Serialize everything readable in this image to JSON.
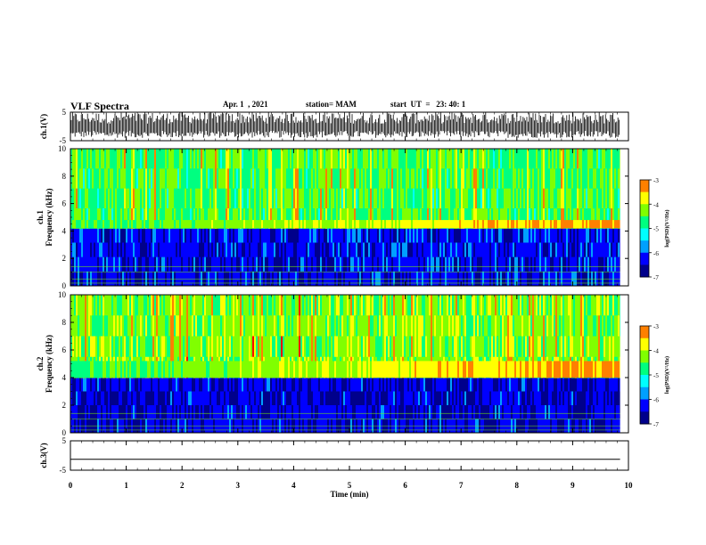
{
  "header": {
    "title": "VLF Spectra",
    "date": "Apr. 1  , 2021",
    "station": "station= MAM",
    "start": "start  UT  =   23: 40: 1"
  },
  "chart_data": [
    {
      "type": "line",
      "panel": "channel-1-waveform",
      "ylabel": "ch.1(V)",
      "ylim": [
        -5,
        5
      ],
      "yticks": [
        "5",
        "-5"
      ],
      "description_level": "dense impulsive spikes spanning full range"
    },
    {
      "type": "heatmap",
      "panel": "channel-1-spectrogram",
      "ylabel": "ch.1\nFrequency (kHz)",
      "ylabel_lines": [
        "ch.1",
        "Frequency (kHz)"
      ],
      "ylim": [
        0,
        10
      ],
      "yticks": [
        "0",
        "2",
        "4",
        "6",
        "8",
        "10"
      ],
      "xlim": [
        0,
        10
      ],
      "colorbar": {
        "label": "log(PSD)(V²/Hz)",
        "range": [
          -7,
          -3
        ],
        "ticks": [
          "-3",
          "-4",
          "-5",
          "-6",
          "-7"
        ]
      },
      "bands": [
        {
          "from_khz": 0,
          "to_khz": 4.2,
          "level": -6.3
        },
        {
          "from_khz": 4.2,
          "to_khz": 10,
          "level": -4.6
        }
      ],
      "enhancement_khz": [
        4.2,
        4.8
      ]
    },
    {
      "type": "heatmap",
      "panel": "channel-2-spectrogram",
      "ylabel": "ch.2\nFrequency (kHz)",
      "ylabel_lines": [
        "ch.2",
        "Frequency (kHz)"
      ],
      "ylim": [
        0,
        10
      ],
      "yticks": [
        "0",
        "2",
        "4",
        "6",
        "8",
        "10"
      ],
      "xlim": [
        0,
        10
      ],
      "colorbar": {
        "label": "log(PSD)(V²/Hz)",
        "range": [
          -7,
          -3
        ],
        "ticks": [
          "-3",
          "-4",
          "-5",
          "-6",
          "-7"
        ]
      },
      "bands": [
        {
          "from_khz": 0,
          "to_khz": 4.0,
          "level": -6.4
        },
        {
          "from_khz": 4.0,
          "to_khz": 10,
          "level": -4.3
        }
      ],
      "enhancement_khz": [
        4.0,
        5.2
      ]
    },
    {
      "type": "line",
      "panel": "channel-3-waveform",
      "ylabel": "ch.3(V)",
      "ylim": [
        -5,
        5
      ],
      "yticks": [
        "5",
        "-5"
      ],
      "x": [
        0,
        9.85
      ],
      "y": [
        -1.3,
        -1.3
      ]
    }
  ],
  "xaxis": {
    "label": "Time  (min)",
    "ticks": [
      "0",
      "1",
      "2",
      "3",
      "4",
      "5",
      "6",
      "7",
      "8",
      "9",
      "10"
    ],
    "range": [
      0,
      10
    ],
    "data_end": 9.85
  },
  "colors": {
    "scale": [
      "#00008b",
      "#0000ff",
      "#00a0ff",
      "#00ffff",
      "#00ff80",
      "#80ff00",
      "#ffff00",
      "#ff8000",
      "#ff0000",
      "#ffffff"
    ]
  }
}
